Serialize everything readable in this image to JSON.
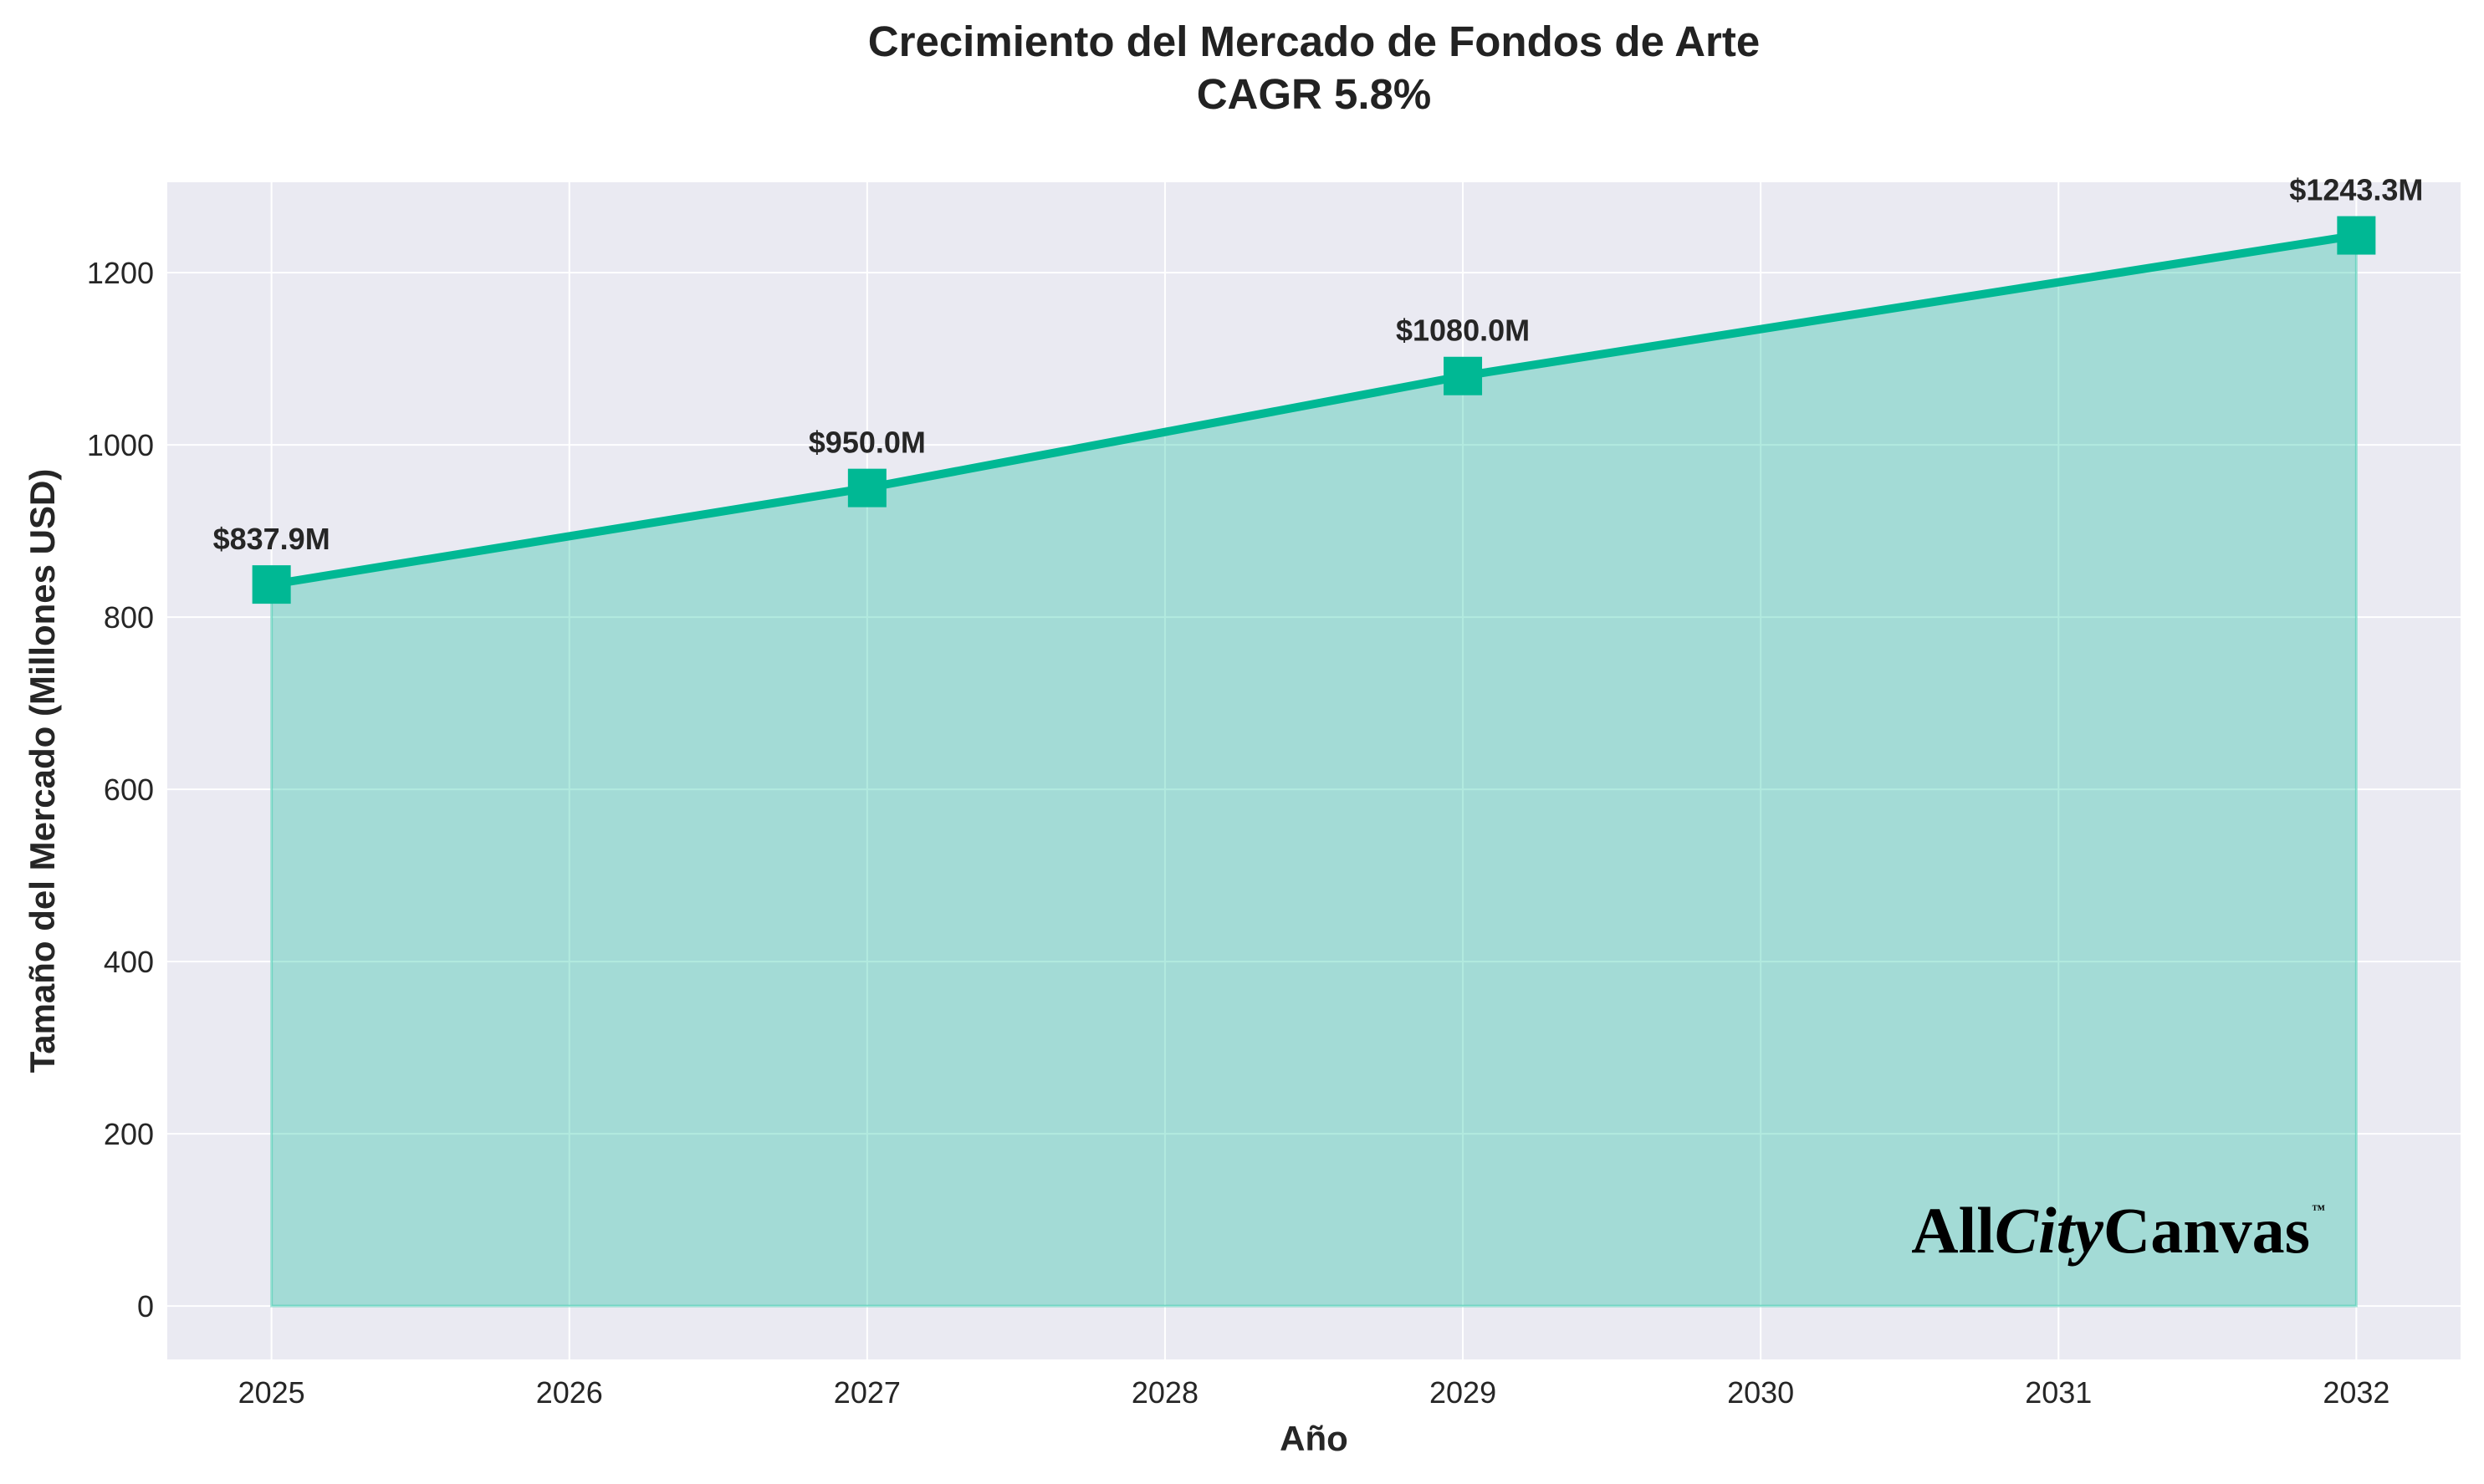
{
  "chart_data": {
    "type": "area",
    "title_line1": "Crecimiento del Mercado de Fondos de Arte",
    "title_line2": "CAGR 5.8%",
    "xlabel": "Año",
    "ylabel": "Tamaño del Mercado (Millones USD)",
    "x": [
      2025,
      2027,
      2029,
      2032
    ],
    "values": [
      837.9,
      950.0,
      1080.0,
      1243.3
    ],
    "point_labels": [
      "$837.9M",
      "$950.0M",
      "$1080.0M",
      "$1243.3M"
    ],
    "xlim": [
      2024.65,
      2032.35
    ],
    "ylim": [
      -62,
      1305
    ],
    "x_ticks": [
      2025,
      2026,
      2027,
      2028,
      2029,
      2030,
      2031,
      2032
    ],
    "y_ticks": [
      0,
      200,
      400,
      600,
      800,
      1000,
      1200
    ],
    "grid": true,
    "marker": "square",
    "colors": {
      "line": "#00B894",
      "fill": "#00B894",
      "plot_background": "#EAEAF2",
      "grid": "#ffffff",
      "text": "#262626"
    }
  },
  "logo": {
    "part1": "All",
    "part2": "City",
    "part3": "Canvas",
    "tm": "™"
  }
}
